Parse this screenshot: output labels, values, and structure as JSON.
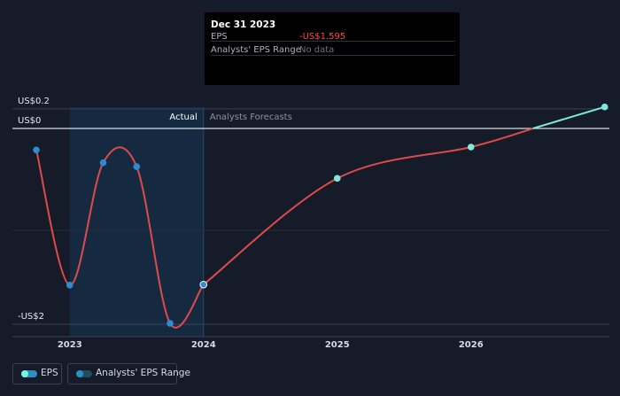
{
  "tooltip": {
    "date": "Dec 31 2023",
    "rows": [
      {
        "label": "EPS",
        "value": "-US$1.595",
        "color": "#ff4a4a"
      },
      {
        "label": "Analysts' EPS Range",
        "value": "No data",
        "color": "#6b7280"
      }
    ]
  },
  "labels": {
    "actual": "Actual",
    "forecast": "Analysts Forecasts"
  },
  "legend": [
    {
      "label": "EPS",
      "pill_color": "#2b8fc1",
      "dot_color": "#7cf0dd"
    },
    {
      "label": "Analysts' EPS Range",
      "pill_color": "#1f4e63",
      "dot_color": "#2b8fc1"
    }
  ],
  "colors": {
    "background": "#151b29",
    "past_shade": "#16304a",
    "eps_line": "#e04a4a",
    "forecast_line": "#7ee8d9",
    "actual_point": "#2e8bd0",
    "forecast_point": "#7ee8d9"
  },
  "chart_data": {
    "type": "line",
    "title": "",
    "xlabel": "",
    "ylabel": "",
    "ylim": [
      -2,
      0.2
    ],
    "y_ticks": [
      {
        "value": 0.2,
        "label": "US$0.2"
      },
      {
        "value": 0,
        "label": "US$0"
      },
      {
        "value": -2,
        "label": "-US$2"
      }
    ],
    "x_ticks": [
      {
        "value": 2023,
        "label": "2023"
      },
      {
        "value": 2024,
        "label": "2024"
      },
      {
        "value": 2025,
        "label": "2025"
      },
      {
        "value": 2026,
        "label": "2026"
      }
    ],
    "xlim": [
      2022.6,
      2027.0
    ],
    "actual_end": 2024.0,
    "shade_start": 2023.0,
    "series": [
      {
        "name": "EPS",
        "kind": "actual",
        "points": [
          [
            2022.75,
            -0.22
          ],
          [
            2023.0,
            -1.6
          ],
          [
            2023.25,
            -0.35
          ],
          [
            2023.5,
            -0.39
          ],
          [
            2023.75,
            -1.99
          ],
          [
            2024.0,
            -1.595
          ]
        ]
      },
      {
        "name": "EPS",
        "kind": "forecast",
        "points": [
          [
            2024.0,
            -1.595
          ],
          [
            2025.0,
            -0.51
          ],
          [
            2026.0,
            -0.19
          ],
          [
            2027.0,
            0.22
          ]
        ]
      }
    ]
  }
}
